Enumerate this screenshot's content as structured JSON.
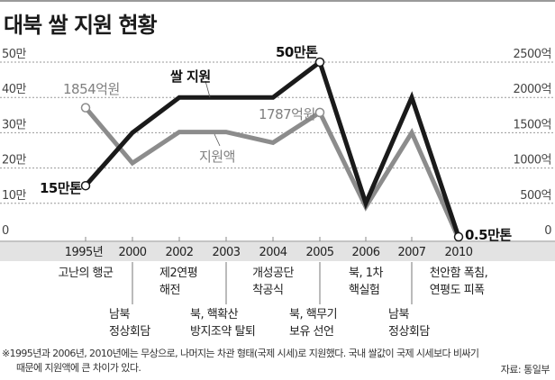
{
  "title": "대북 쌀 지원 현황",
  "chart_data": {
    "type": "line",
    "title": "대북 쌀 지원 현황",
    "categories": [
      "1995년",
      "2000",
      "2002",
      "2003",
      "2004",
      "2005",
      "2006",
      "2007",
      "2010"
    ],
    "left_axis": {
      "unit": "만톤",
      "ylim": [
        0,
        50
      ],
      "ticks": [
        "0",
        "10만",
        "20만",
        "30만",
        "40만",
        "50만"
      ],
      "tick_values": [
        0,
        10,
        20,
        30,
        40,
        50
      ]
    },
    "right_axis": {
      "unit": "억원",
      "ylim": [
        0,
        2500
      ],
      "ticks": [
        "0",
        "500억",
        "1000억",
        "1500억",
        "2000억",
        "2500억"
      ],
      "tick_values": [
        0,
        500,
        1000,
        1500,
        2000,
        2500
      ]
    },
    "series": [
      {
        "name": "쌀 지원",
        "axis": "left",
        "color": "#1a1a1a",
        "values": [
          15,
          30,
          40,
          40,
          40,
          50,
          10,
          40,
          0.5
        ]
      },
      {
        "name": "지원액",
        "axis": "right",
        "color": "#8c8c8c",
        "values": [
          1854,
          1070,
          1510,
          1510,
          1360,
          1787,
          450,
          1500,
          0
        ]
      }
    ],
    "annotations": {
      "rice_start": "15만톤",
      "rice_peak": "50만톤",
      "rice_end": "0.5만톤",
      "support_start": "1854억원",
      "support_2005": "1787억원",
      "series_label_rice": "쌀 지원",
      "series_label_support": "지원액"
    },
    "grid": true,
    "legend": "inline"
  },
  "events": [
    {
      "year": "1995년",
      "lines": [
        "고난의 행군"
      ]
    },
    {
      "year": "2000",
      "lines": [
        "남북",
        "정상회담"
      ]
    },
    {
      "year": "2002",
      "lines": [
        "제2연평",
        "해전"
      ]
    },
    {
      "year": "2003",
      "lines": [
        "북, 핵확산",
        "방지조약 탈퇴"
      ]
    },
    {
      "year": "2004",
      "lines": [
        "개성공단",
        "착공식"
      ]
    },
    {
      "year": "2005",
      "lines": [
        "북, 핵무기",
        "보유 선언"
      ]
    },
    {
      "year": "2006",
      "lines": [
        "북, 1차",
        "핵실험"
      ]
    },
    {
      "year": "2007",
      "lines": [
        "남북",
        "정상회담"
      ]
    },
    {
      "year": "2010",
      "lines": [
        "천안함 폭침,",
        "연평도 피폭"
      ]
    }
  ],
  "note": {
    "line1": "※1995년과 2006년, 2010년에는 무상으로, 나머지는 차관 형태(국제 시세)로 지원했다. 국내 쌀값이 국제 시세보다 비싸기",
    "line2": "때문에 지원액에 큰 차이가 있다."
  },
  "source": "자료: 통일부",
  "colors": {
    "rice": "#1a1a1a",
    "support": "#8c8c8c",
    "band": "#e3e3e3",
    "grid": "#9a9a9a"
  }
}
